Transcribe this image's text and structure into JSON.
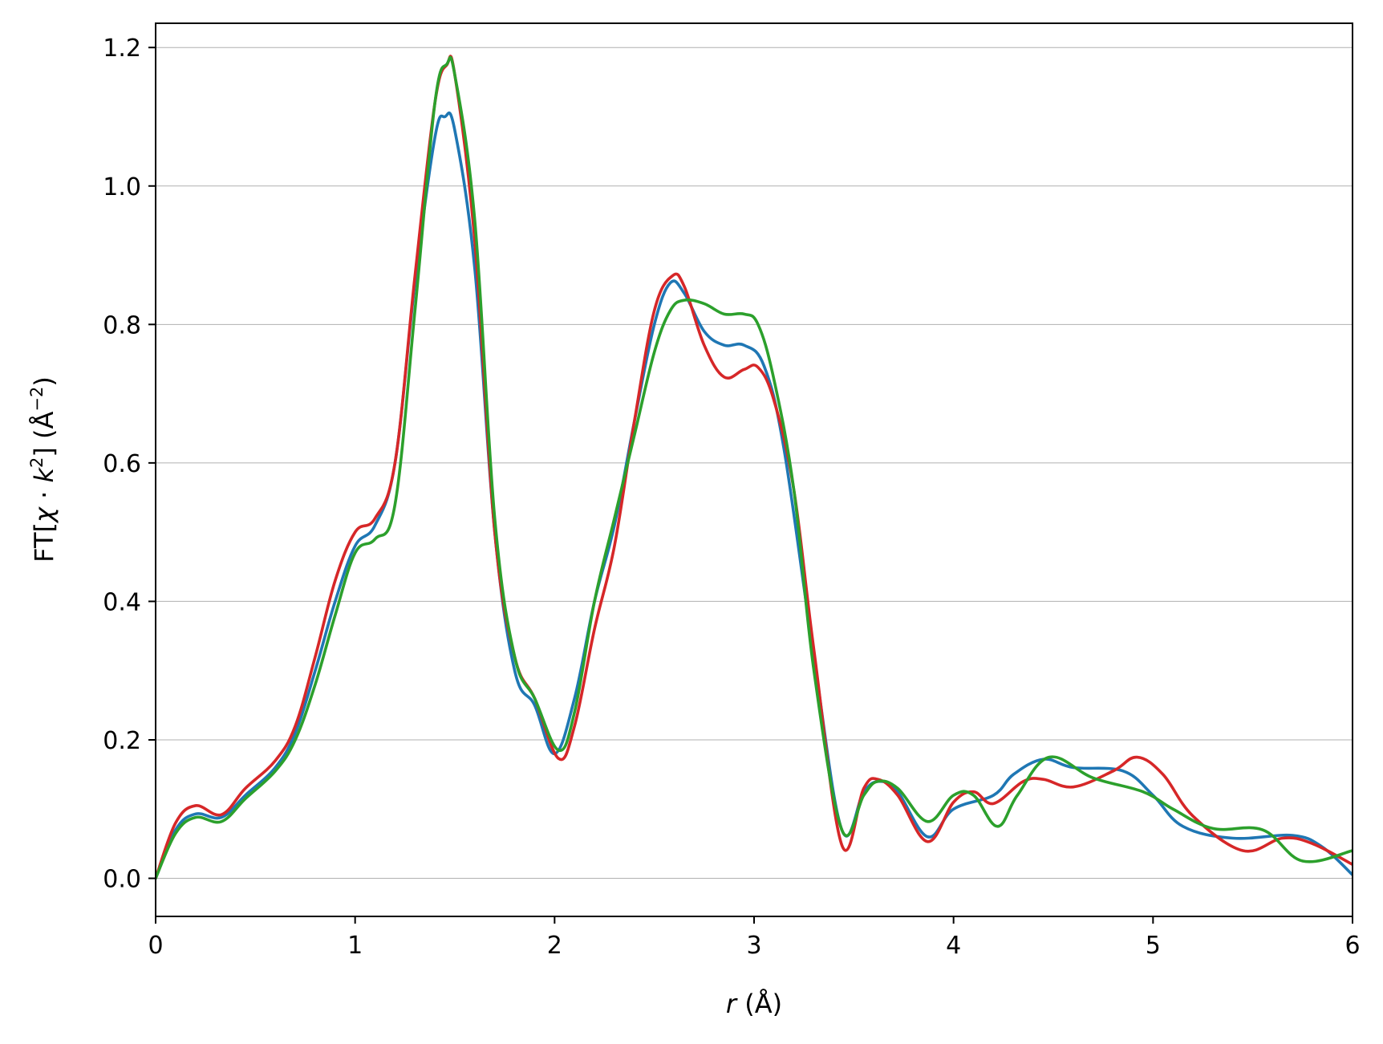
{
  "chart_data": {
    "type": "line",
    "xlabel": {
      "var": "r",
      "unit": " (Å)"
    },
    "ylabel": {
      "pre": "FT[",
      "chi": "χ",
      "dot": " · ",
      "k": "k",
      "kexp": "2",
      "post": "] (Å",
      "uexp": "−2",
      "close": ")"
    },
    "xlim": [
      0,
      6
    ],
    "ylim": [
      -0.055,
      1.235
    ],
    "xticks": [
      {
        "value": 0,
        "label": "0"
      },
      {
        "value": 1,
        "label": "1"
      },
      {
        "value": 2,
        "label": "2"
      },
      {
        "value": 3,
        "label": "3"
      },
      {
        "value": 4,
        "label": "4"
      },
      {
        "value": 5,
        "label": "5"
      },
      {
        "value": 6,
        "label": "6"
      }
    ],
    "yticks": [
      {
        "value": 0.0,
        "label": "0.0"
      },
      {
        "value": 0.2,
        "label": "0.2"
      },
      {
        "value": 0.4,
        "label": "0.4"
      },
      {
        "value": 0.6,
        "label": "0.6"
      },
      {
        "value": 0.8,
        "label": "0.8"
      },
      {
        "value": 1.0,
        "label": "1.0"
      },
      {
        "value": 1.2,
        "label": "1.2"
      }
    ],
    "grid": {
      "y": true,
      "x": false,
      "color": "#b0b0b0"
    },
    "series": [
      {
        "color": "#1f77b4",
        "points": [
          [
            0,
            0.0
          ],
          [
            0.1,
            0.07
          ],
          [
            0.2,
            0.093
          ],
          [
            0.33,
            0.088
          ],
          [
            0.45,
            0.12
          ],
          [
            0.6,
            0.16
          ],
          [
            0.7,
            0.21
          ],
          [
            0.8,
            0.3
          ],
          [
            0.9,
            0.4
          ],
          [
            1.0,
            0.48
          ],
          [
            1.1,
            0.51
          ],
          [
            1.2,
            0.6
          ],
          [
            1.3,
            0.86
          ],
          [
            1.4,
            1.07
          ],
          [
            1.45,
            1.1
          ],
          [
            1.5,
            1.08
          ],
          [
            1.6,
            0.88
          ],
          [
            1.7,
            0.5
          ],
          [
            1.8,
            0.3
          ],
          [
            1.9,
            0.25
          ],
          [
            2.0,
            0.18
          ],
          [
            2.1,
            0.26
          ],
          [
            2.2,
            0.4
          ],
          [
            2.3,
            0.51
          ],
          [
            2.4,
            0.66
          ],
          [
            2.5,
            0.8
          ],
          [
            2.58,
            0.86
          ],
          [
            2.65,
            0.845
          ],
          [
            2.75,
            0.79
          ],
          [
            2.85,
            0.77
          ],
          [
            2.95,
            0.77
          ],
          [
            3.05,
            0.74
          ],
          [
            3.15,
            0.62
          ],
          [
            3.3,
            0.32
          ],
          [
            3.44,
            0.07
          ],
          [
            3.55,
            0.125
          ],
          [
            3.63,
            0.14
          ],
          [
            3.72,
            0.125
          ],
          [
            3.87,
            0.06
          ],
          [
            4.0,
            0.1
          ],
          [
            4.2,
            0.12
          ],
          [
            4.3,
            0.15
          ],
          [
            4.45,
            0.172
          ],
          [
            4.6,
            0.16
          ],
          [
            4.85,
            0.155
          ],
          [
            5.0,
            0.12
          ],
          [
            5.15,
            0.075
          ],
          [
            5.4,
            0.058
          ],
          [
            5.7,
            0.062
          ],
          [
            5.85,
            0.045
          ],
          [
            6.0,
            0.005
          ]
        ]
      },
      {
        "color": "#d62728",
        "points": [
          [
            0,
            0.0
          ],
          [
            0.1,
            0.08
          ],
          [
            0.2,
            0.105
          ],
          [
            0.33,
            0.092
          ],
          [
            0.45,
            0.13
          ],
          [
            0.6,
            0.17
          ],
          [
            0.7,
            0.22
          ],
          [
            0.8,
            0.32
          ],
          [
            0.9,
            0.43
          ],
          [
            1.0,
            0.5
          ],
          [
            1.1,
            0.52
          ],
          [
            1.2,
            0.6
          ],
          [
            1.3,
            0.87
          ],
          [
            1.4,
            1.12
          ],
          [
            1.46,
            1.175
          ],
          [
            1.5,
            1.16
          ],
          [
            1.6,
            0.92
          ],
          [
            1.7,
            0.5
          ],
          [
            1.8,
            0.32
          ],
          [
            1.9,
            0.26
          ],
          [
            2.02,
            0.173
          ],
          [
            2.1,
            0.22
          ],
          [
            2.2,
            0.36
          ],
          [
            2.3,
            0.48
          ],
          [
            2.4,
            0.66
          ],
          [
            2.5,
            0.82
          ],
          [
            2.59,
            0.87
          ],
          [
            2.65,
            0.855
          ],
          [
            2.75,
            0.77
          ],
          [
            2.85,
            0.724
          ],
          [
            2.95,
            0.735
          ],
          [
            3.02,
            0.738
          ],
          [
            3.1,
            0.69
          ],
          [
            3.2,
            0.56
          ],
          [
            3.3,
            0.33
          ],
          [
            3.44,
            0.048
          ],
          [
            3.55,
            0.13
          ],
          [
            3.62,
            0.143
          ],
          [
            3.72,
            0.12
          ],
          [
            3.87,
            0.053
          ],
          [
            4.0,
            0.11
          ],
          [
            4.1,
            0.125
          ],
          [
            4.2,
            0.108
          ],
          [
            4.35,
            0.14
          ],
          [
            4.45,
            0.143
          ],
          [
            4.6,
            0.132
          ],
          [
            4.8,
            0.155
          ],
          [
            4.92,
            0.175
          ],
          [
            5.05,
            0.15
          ],
          [
            5.2,
            0.09
          ],
          [
            5.45,
            0.04
          ],
          [
            5.65,
            0.058
          ],
          [
            5.8,
            0.05
          ],
          [
            6.0,
            0.02
          ]
        ]
      },
      {
        "color": "#2ca02c",
        "points": [
          [
            0,
            0.0
          ],
          [
            0.1,
            0.065
          ],
          [
            0.2,
            0.088
          ],
          [
            0.33,
            0.082
          ],
          [
            0.45,
            0.115
          ],
          [
            0.6,
            0.155
          ],
          [
            0.7,
            0.2
          ],
          [
            0.8,
            0.28
          ],
          [
            0.9,
            0.38
          ],
          [
            1.0,
            0.47
          ],
          [
            1.1,
            0.49
          ],
          [
            1.2,
            0.54
          ],
          [
            1.3,
            0.82
          ],
          [
            1.4,
            1.12
          ],
          [
            1.46,
            1.176
          ],
          [
            1.5,
            1.16
          ],
          [
            1.6,
            0.95
          ],
          [
            1.7,
            0.52
          ],
          [
            1.8,
            0.32
          ],
          [
            1.9,
            0.26
          ],
          [
            2.02,
            0.185
          ],
          [
            2.1,
            0.24
          ],
          [
            2.2,
            0.4
          ],
          [
            2.3,
            0.52
          ],
          [
            2.4,
            0.64
          ],
          [
            2.5,
            0.76
          ],
          [
            2.58,
            0.82
          ],
          [
            2.65,
            0.835
          ],
          [
            2.75,
            0.83
          ],
          [
            2.85,
            0.815
          ],
          [
            2.95,
            0.815
          ],
          [
            3.02,
            0.8
          ],
          [
            3.1,
            0.72
          ],
          [
            3.2,
            0.56
          ],
          [
            3.3,
            0.3
          ],
          [
            3.44,
            0.07
          ],
          [
            3.55,
            0.12
          ],
          [
            3.62,
            0.14
          ],
          [
            3.72,
            0.13
          ],
          [
            3.87,
            0.082
          ],
          [
            4.0,
            0.12
          ],
          [
            4.1,
            0.12
          ],
          [
            4.22,
            0.075
          ],
          [
            4.32,
            0.12
          ],
          [
            4.48,
            0.175
          ],
          [
            4.7,
            0.145
          ],
          [
            4.95,
            0.125
          ],
          [
            5.1,
            0.1
          ],
          [
            5.3,
            0.072
          ],
          [
            5.55,
            0.07
          ],
          [
            5.75,
            0.025
          ],
          [
            6.0,
            0.04
          ]
        ]
      }
    ]
  }
}
